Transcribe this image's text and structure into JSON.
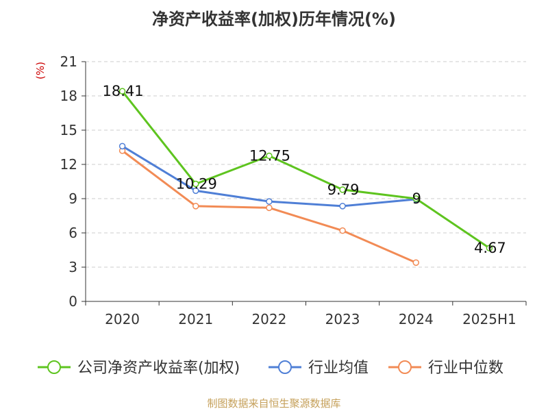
{
  "chart_data": {
    "type": "line",
    "title": "净资产收益率(加权)历年情况(%)",
    "ylabel": "(%)",
    "xlabel": "",
    "categories": [
      "2020",
      "2021",
      "2022",
      "2023",
      "2024",
      "2025H1"
    ],
    "ylim": [
      0,
      21
    ],
    "yticks": [
      0,
      3,
      6,
      9,
      12,
      15,
      18,
      21
    ],
    "grid": true,
    "legend_position": "bottom",
    "series": [
      {
        "name": "公司净资产收益率(加权)",
        "color": "#5ec41f",
        "values": [
          18.41,
          10.29,
          12.75,
          9.79,
          9,
          4.67
        ],
        "labels": [
          "18.41",
          "10.29",
          "12.75",
          "9.79",
          "9",
          "4.67"
        ]
      },
      {
        "name": "行业均值",
        "color": "#4f7fd6",
        "values": [
          13.6,
          9.7,
          8.75,
          8.35,
          8.95,
          null
        ]
      },
      {
        "name": "行业中位数",
        "color": "#f28b55",
        "values": [
          13.2,
          8.35,
          8.2,
          6.2,
          3.4,
          null
        ]
      }
    ],
    "source": "制图数据来自恒生聚源数据库"
  }
}
